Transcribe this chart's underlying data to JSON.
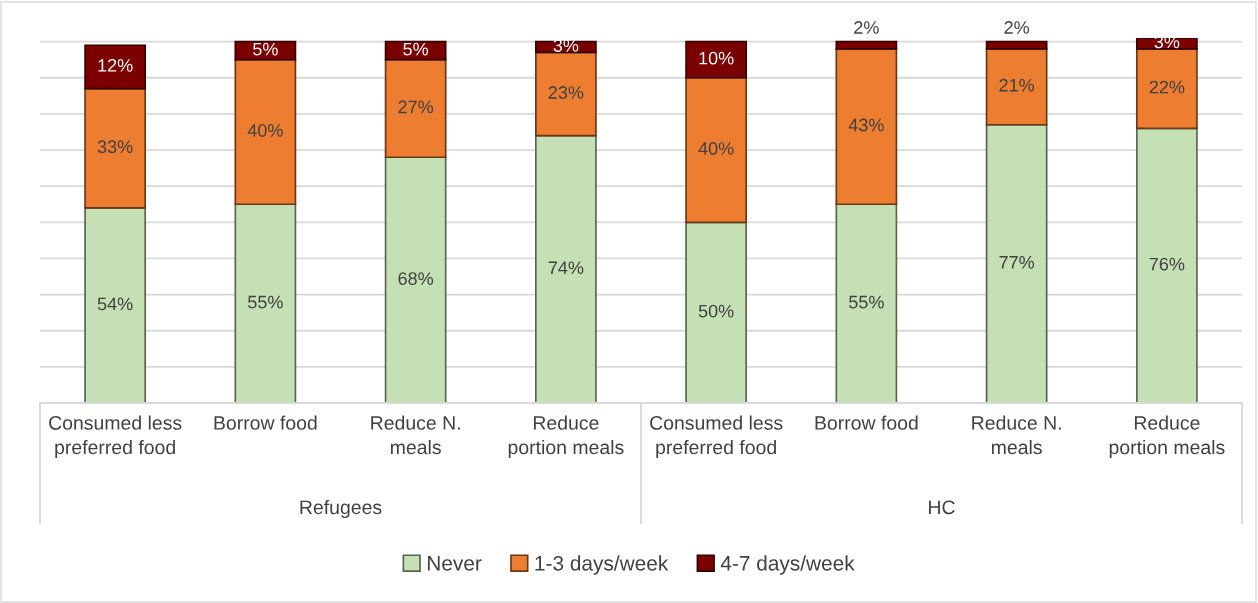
{
  "chart_data": {
    "type": "bar",
    "stacked": true,
    "categories": [
      "Consumed less\npreferred food",
      "Borrow food",
      "Reduce N.\nmeals",
      "Reduce\nportion meals",
      "Consumed less\npreferred food",
      "Borrow food",
      "Reduce N.\nmeals",
      "Reduce\nportion meals"
    ],
    "series": [
      {
        "name": "Never",
        "color": "#c5e0b4",
        "values": [
          54,
          55,
          68,
          74,
          50,
          55,
          77,
          76
        ],
        "value_labels": [
          "54%",
          "55%",
          "68%",
          "74%",
          "50%",
          "55%",
          "77%",
          "76%"
        ]
      },
      {
        "name": "1-3 days/week",
        "color": "#ed7d31",
        "values": [
          33,
          40,
          27,
          23,
          40,
          43,
          21,
          22
        ],
        "value_labels": [
          "33%",
          "40%",
          "27%",
          "23%",
          "40%",
          "43%",
          "21%",
          "22%"
        ]
      },
      {
        "name": "4-7 days/week",
        "color": "#7b0000",
        "values": [
          12,
          5,
          5,
          3,
          10,
          2,
          2,
          3
        ],
        "value_labels": [
          "12%",
          "5%",
          "5%",
          "3%",
          "10%",
          "2%",
          "2%",
          "3%"
        ]
      }
    ],
    "ylim": [
      0,
      101
    ],
    "yticks": [
      {
        "value": 0,
        "label": null
      },
      {
        "value": 10,
        "label": null
      },
      {
        "value": 20,
        "label": null
      },
      {
        "value": 30,
        "label": null
      },
      {
        "value": 40,
        "label": null
      },
      {
        "value": 50,
        "label": null
      },
      {
        "value": 60,
        "label": null
      },
      {
        "value": 70,
        "label": null
      },
      {
        "value": 80,
        "label": null
      },
      {
        "value": 90,
        "label": null
      },
      {
        "value": 100,
        "label": null
      }
    ],
    "grid": "y",
    "tick_labels": "x",
    "legend": "bottom",
    "annotations": [
      "Refugees",
      "HC"
    ]
  }
}
